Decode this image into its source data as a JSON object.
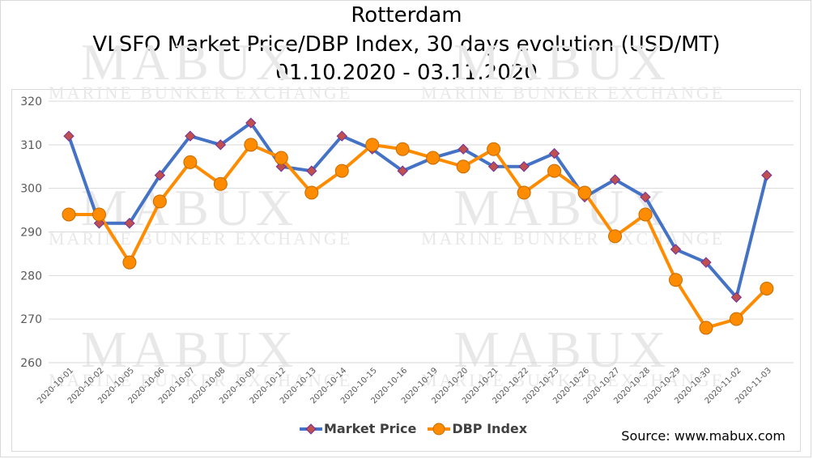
{
  "title_line1": "Rotterdam",
  "title_line2": "VLSFO Market Price/DBP Index, 30 days evolution (USD/MT)",
  "title_line3": "01.10.2020 - 03.11.2020",
  "source": "Source: www.mabux.com",
  "watermark": {
    "brand": "MABUX",
    "tagline": "Marine Bunker Exchange"
  },
  "colors": {
    "market_price": "#4472C4",
    "market_marker_fill": "#C0504D",
    "dbp_index": "#FF8C00"
  },
  "chart_data": {
    "type": "line",
    "title": "Rotterdam VLSFO Market Price/DBP Index, 30 days evolution (USD/MT) 01.10.2020 - 03.11.2020",
    "categories": [
      "2020-10-01",
      "2020-10-02",
      "2020-10-05",
      "2020-10-06",
      "2020-10-07",
      "2020-10-08",
      "2020-10-09",
      "2020-10-12",
      "2020-10-13",
      "2020-10-14",
      "2020-10-15",
      "2020-10-16",
      "2020-10-19",
      "2020-10-20",
      "2020-10-21",
      "2020-10-22",
      "2020-10-23",
      "2020-10-26",
      "2020-10-27",
      "2020-10-28",
      "2020-10-29",
      "2020-10-30",
      "2020-11-02",
      "2020-11-03"
    ],
    "series": [
      {
        "name": "Market Price",
        "marker": "diamond",
        "values": [
          312,
          292,
          292,
          303,
          312,
          310,
          315,
          305,
          304,
          312,
          309,
          304,
          307,
          309,
          305,
          305,
          308,
          298,
          302,
          298,
          286,
          283,
          275,
          303
        ]
      },
      {
        "name": "DBP Index",
        "marker": "circle",
        "values": [
          294,
          294,
          283,
          297,
          306,
          301,
          310,
          307,
          299,
          304,
          310,
          309,
          307,
          305,
          309,
          299,
          304,
          299,
          289,
          294,
          279,
          268,
          270,
          277
        ]
      }
    ],
    "yticks": [
      260,
      270,
      280,
      290,
      300,
      310,
      320
    ],
    "ylim": [
      260,
      320
    ],
    "grid": true,
    "legend": "bottom"
  }
}
